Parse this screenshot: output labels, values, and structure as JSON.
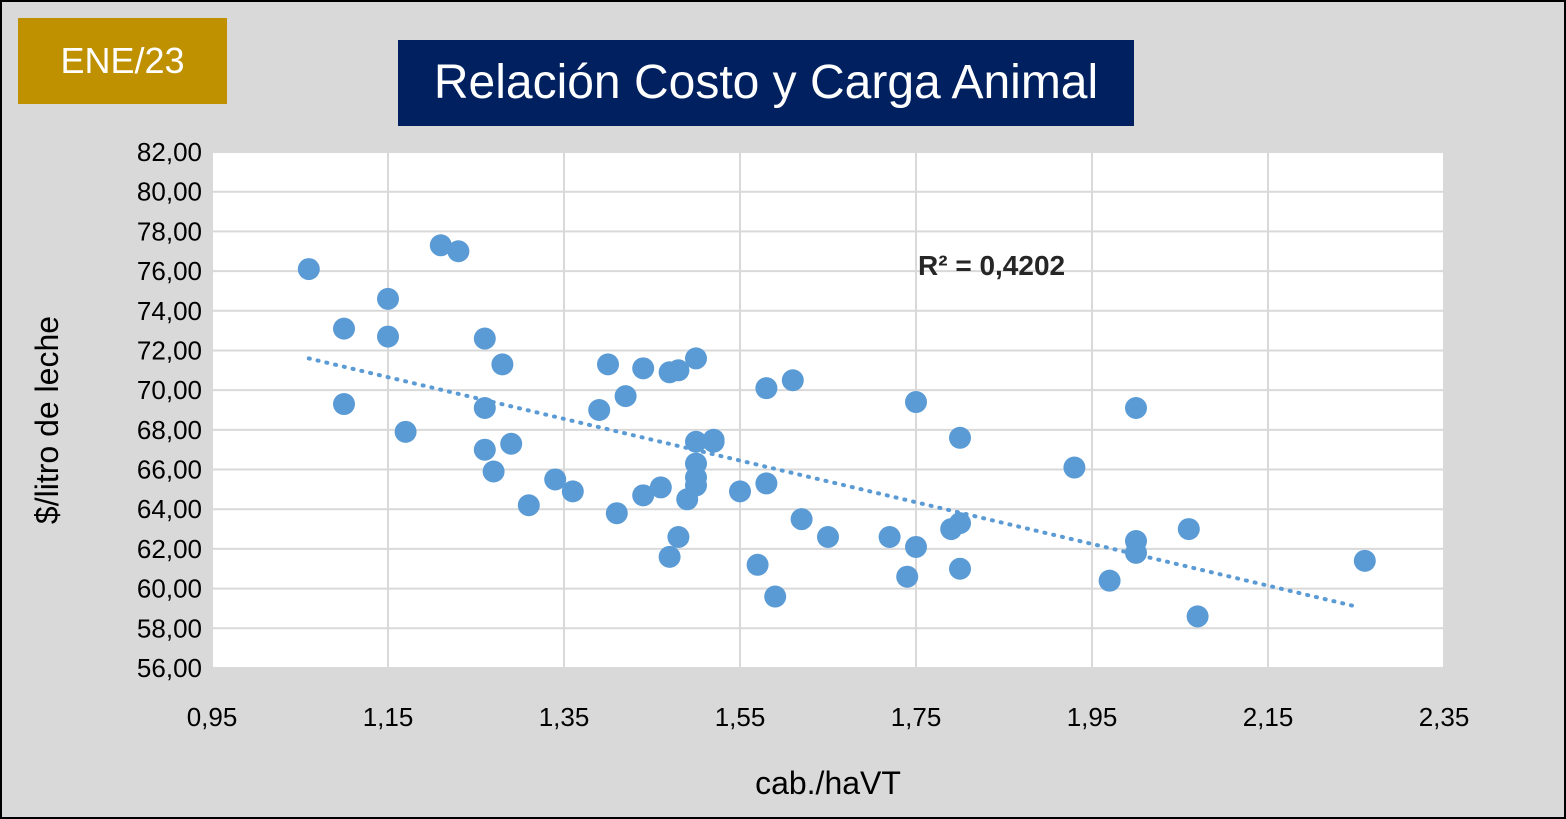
{
  "badge": {
    "label": "ENE/23"
  },
  "chart_data": {
    "type": "scatter",
    "title": "Relación Costo y Carga Animal",
    "xlabel": "cab./haVT",
    "ylabel": "$/litro de leche",
    "xlim": [
      0.95,
      2.35
    ],
    "ylim": [
      56,
      82
    ],
    "x_ticks": [
      "0,95",
      "1,15",
      "1,35",
      "1,55",
      "1,75",
      "1,95",
      "2,15",
      "2,35"
    ],
    "y_ticks": [
      "82,00",
      "80,00",
      "78,00",
      "76,00",
      "74,00",
      "72,00",
      "70,00",
      "68,00",
      "66,00",
      "64,00",
      "62,00",
      "60,00",
      "58,00",
      "56,00"
    ],
    "grid": true,
    "point_color": "#5b9bd5",
    "trendline": {
      "type": "linear",
      "style": "dotted",
      "color": "#5b9bd5",
      "x": [
        1.06,
        2.25
      ],
      "y": [
        71.6,
        59.1
      ]
    },
    "r_squared_label": "R² = 0,4202",
    "points": [
      [
        1.06,
        76.1
      ],
      [
        1.1,
        73.1
      ],
      [
        1.1,
        69.3
      ],
      [
        1.15,
        74.6
      ],
      [
        1.15,
        72.7
      ],
      [
        1.17,
        67.9
      ],
      [
        1.21,
        77.3
      ],
      [
        1.23,
        77.0
      ],
      [
        1.26,
        72.6
      ],
      [
        1.26,
        69.1
      ],
      [
        1.26,
        67.0
      ],
      [
        1.27,
        65.9
      ],
      [
        1.28,
        71.3
      ],
      [
        1.29,
        67.3
      ],
      [
        1.31,
        64.2
      ],
      [
        1.34,
        65.5
      ],
      [
        1.36,
        64.9
      ],
      [
        1.39,
        69.0
      ],
      [
        1.4,
        71.3
      ],
      [
        1.41,
        63.8
      ],
      [
        1.42,
        69.7
      ],
      [
        1.44,
        71.1
      ],
      [
        1.44,
        64.7
      ],
      [
        1.46,
        65.1
      ],
      [
        1.47,
        70.9
      ],
      [
        1.48,
        71.0
      ],
      [
        1.48,
        62.6
      ],
      [
        1.47,
        61.6
      ],
      [
        1.49,
        64.5
      ],
      [
        1.5,
        71.6
      ],
      [
        1.5,
        67.4
      ],
      [
        1.5,
        66.3
      ],
      [
        1.5,
        65.6
      ],
      [
        1.5,
        65.2
      ],
      [
        1.52,
        67.5
      ],
      [
        1.52,
        67.4
      ],
      [
        1.55,
        64.9
      ],
      [
        1.58,
        70.1
      ],
      [
        1.58,
        65.3
      ],
      [
        1.57,
        61.2
      ],
      [
        1.59,
        59.6
      ],
      [
        1.61,
        70.5
      ],
      [
        1.62,
        63.5
      ],
      [
        1.65,
        62.6
      ],
      [
        1.72,
        62.6
      ],
      [
        1.74,
        60.6
      ],
      [
        1.75,
        69.4
      ],
      [
        1.75,
        62.1
      ],
      [
        1.79,
        63.0
      ],
      [
        1.8,
        63.3
      ],
      [
        1.8,
        67.6
      ],
      [
        1.8,
        61.0
      ],
      [
        1.93,
        66.1
      ],
      [
        1.97,
        60.4
      ],
      [
        2.0,
        69.1
      ],
      [
        2.0,
        62.4
      ],
      [
        2.0,
        61.8
      ],
      [
        2.06,
        63.0
      ],
      [
        2.07,
        58.6
      ],
      [
        2.26,
        61.4
      ]
    ]
  }
}
